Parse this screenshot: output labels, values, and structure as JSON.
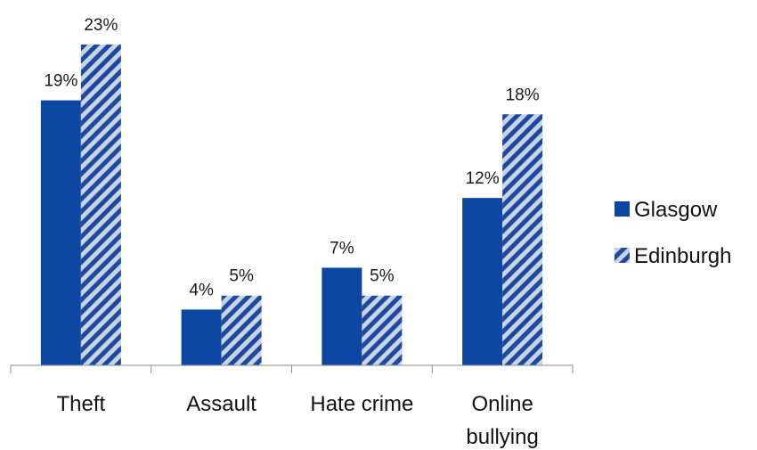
{
  "chart_data": {
    "type": "bar",
    "categories": [
      [
        "Theft"
      ],
      [
        "Assault"
      ],
      [
        "Hate crime"
      ],
      [
        "Online",
        "bullying"
      ]
    ],
    "series": [
      {
        "name": "Glasgow",
        "values": [
          19,
          4,
          7,
          12
        ],
        "labels": [
          "19%",
          "4%",
          "7%",
          "12%"
        ],
        "color": "#0d47a1",
        "fill": "solid"
      },
      {
        "name": "Edinburgh",
        "values": [
          23,
          5,
          5,
          18
        ],
        "labels": [
          "23%",
          "5%",
          "5%",
          "18%"
        ],
        "color": "#1e4a9e",
        "stripe_color": "#c9d3e3",
        "fill": "diagonal-stripes"
      }
    ],
    "value_unit": "%",
    "ylim": [
      0,
      25
    ],
    "grid": false,
    "legend_position": "right"
  }
}
